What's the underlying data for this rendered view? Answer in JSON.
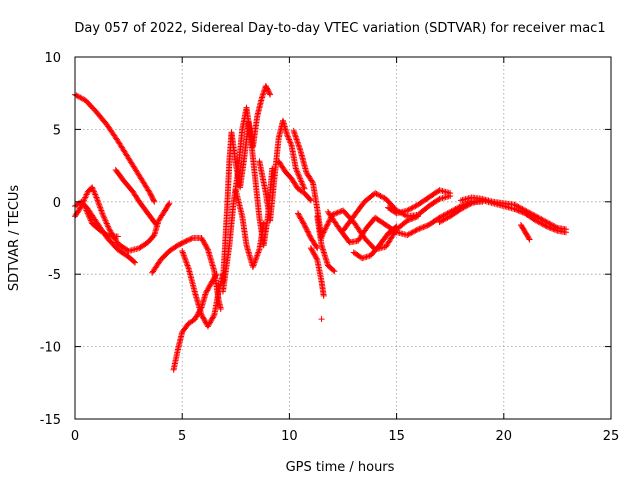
{
  "chart_data": {
    "type": "scatter",
    "title": "Day 057 of 2022, Sidereal Day-to-day VTEC variation (SDTVAR) for receiver mac1",
    "xlabel": "GPS time / hours",
    "ylabel": "SDTVAR / TECUs",
    "xlim": [
      0,
      25
    ],
    "ylim": [
      -15,
      10
    ],
    "xticks": [
      0,
      5,
      10,
      15,
      20,
      25
    ],
    "yticks": [
      -15,
      -10,
      -5,
      0,
      5,
      10
    ],
    "xtick_labels": [
      "0",
      "5",
      "10",
      "15",
      "20",
      "25"
    ],
    "ytick_labels": [
      "-15",
      "-10",
      "-5",
      "0",
      "5",
      "10"
    ],
    "grid": true,
    "marker": "+",
    "series": [
      {
        "name": "mac1",
        "color": "#ff0000",
        "tracks": [
          [
            [
              0.0,
              7.4
            ],
            [
              0.5,
              7.0
            ],
            [
              1.0,
              6.2
            ],
            [
              1.5,
              5.3
            ],
            [
              2.0,
              4.2
            ],
            [
              2.5,
              3.0
            ],
            [
              3.0,
              1.8
            ],
            [
              3.5,
              0.6
            ],
            [
              3.7,
              0.0
            ]
          ],
          [
            [
              1.9,
              2.2
            ],
            [
              2.3,
              1.4
            ],
            [
              2.7,
              0.7
            ],
            [
              3.0,
              0.0
            ],
            [
              3.4,
              -0.8
            ],
            [
              3.8,
              -1.6
            ]
          ],
          [
            [
              0.0,
              -1.0
            ],
            [
              0.3,
              -0.3
            ],
            [
              0.6,
              0.7
            ],
            [
              0.8,
              1.0
            ],
            [
              1.0,
              0.3
            ],
            [
              1.3,
              -0.9
            ],
            [
              1.6,
              -1.9
            ],
            [
              2.0,
              -2.9
            ],
            [
              2.5,
              -3.4
            ],
            [
              3.0,
              -3.2
            ],
            [
              3.4,
              -2.8
            ],
            [
              3.7,
              -2.3
            ],
            [
              3.9,
              -1.3
            ],
            [
              4.2,
              -0.6
            ],
            [
              4.4,
              -0.1
            ]
          ],
          [
            [
              0.0,
              -0.3
            ],
            [
              0.3,
              0.0
            ],
            [
              0.6,
              -0.5
            ],
            [
              1.0,
              -1.4
            ],
            [
              1.5,
              -2.5
            ],
            [
              2.0,
              -3.3
            ],
            [
              2.5,
              -3.8
            ],
            [
              2.8,
              -4.2
            ]
          ],
          [
            [
              0.5,
              -0.5
            ],
            [
              0.8,
              -1.5
            ],
            [
              1.2,
              -2.0
            ],
            [
              1.6,
              -2.4
            ],
            [
              2.0,
              -2.4
            ]
          ],
          [
            [
              3.6,
              -4.9
            ],
            [
              4.0,
              -4.0
            ],
            [
              4.4,
              -3.4
            ],
            [
              4.8,
              -3.0
            ],
            [
              5.2,
              -2.7
            ],
            [
              5.5,
              -2.5
            ],
            [
              5.9,
              -2.5
            ],
            [
              6.2,
              -3.3
            ],
            [
              6.5,
              -4.8
            ],
            [
              6.7,
              -6.8
            ],
            [
              6.8,
              -7.4
            ]
          ],
          [
            [
              4.6,
              -11.6
            ],
            [
              4.8,
              -10.2
            ],
            [
              5.0,
              -9.0
            ],
            [
              5.3,
              -8.4
            ],
            [
              5.6,
              -8.1
            ],
            [
              5.9,
              -7.3
            ],
            [
              6.1,
              -6.3
            ],
            [
              6.4,
              -5.5
            ],
            [
              6.6,
              -5.0
            ]
          ],
          [
            [
              5.0,
              -3.4
            ],
            [
              5.3,
              -4.6
            ],
            [
              5.6,
              -6.3
            ],
            [
              5.9,
              -7.8
            ],
            [
              6.2,
              -8.6
            ],
            [
              6.5,
              -7.8
            ],
            [
              6.7,
              -6.2
            ],
            [
              6.9,
              -5.0
            ]
          ],
          [
            [
              6.9,
              -5.5
            ],
            [
              7.0,
              -3.0
            ],
            [
              7.1,
              -0.3
            ],
            [
              7.2,
              2.8
            ],
            [
              7.3,
              4.8
            ],
            [
              7.5,
              2.6
            ],
            [
              7.7,
              1.0
            ],
            [
              7.9,
              3.1
            ],
            [
              8.1,
              5.5
            ],
            [
              8.3,
              3.8
            ],
            [
              8.5,
              5.9
            ],
            [
              8.7,
              7.1
            ],
            [
              8.9,
              8.0
            ],
            [
              9.1,
              7.4
            ]
          ],
          [
            [
              6.9,
              -6.2
            ],
            [
              7.2,
              -3.0
            ],
            [
              7.4,
              0.0
            ],
            [
              7.6,
              2.0
            ],
            [
              7.8,
              5.0
            ],
            [
              8.0,
              6.5
            ],
            [
              8.2,
              4.4
            ],
            [
              8.4,
              1.7
            ],
            [
              8.6,
              -1.1
            ],
            [
              8.8,
              -3.0
            ],
            [
              9.0,
              -1.0
            ],
            [
              9.2,
              2.3
            ]
          ],
          [
            [
              8.6,
              2.8
            ],
            [
              8.9,
              0.6
            ],
            [
              9.1,
              -1.3
            ],
            [
              9.3,
              1.6
            ],
            [
              9.5,
              4.4
            ],
            [
              9.7,
              5.6
            ],
            [
              9.9,
              4.6
            ],
            [
              10.1,
              3.9
            ],
            [
              10.3,
              2.3
            ],
            [
              10.5,
              1.6
            ],
            [
              10.7,
              0.9
            ]
          ],
          [
            [
              7.5,
              0.8
            ],
            [
              7.8,
              -1.0
            ],
            [
              8.0,
              -3.0
            ],
            [
              8.3,
              -4.5
            ],
            [
              8.6,
              -3.3
            ],
            [
              8.8,
              -1.5
            ]
          ],
          [
            [
              9.5,
              2.8
            ],
            [
              9.8,
              2.1
            ],
            [
              10.1,
              1.6
            ],
            [
              10.4,
              0.9
            ],
            [
              10.7,
              0.6
            ],
            [
              11.0,
              0.1
            ]
          ],
          [
            [
              10.2,
              4.9
            ],
            [
              10.5,
              3.6
            ],
            [
              10.8,
              2.0
            ],
            [
              11.1,
              1.3
            ],
            [
              11.3,
              -0.5
            ],
            [
              11.5,
              -2.5
            ]
          ],
          [
            [
              11.0,
              -3.2
            ],
            [
              11.3,
              -4.0
            ],
            [
              11.5,
              -5.5
            ],
            [
              11.6,
              -6.5
            ]
          ],
          [
            [
              11.3,
              -1.0
            ],
            [
              11.5,
              -3.0
            ],
            [
              11.8,
              -4.4
            ],
            [
              12.1,
              -4.8
            ]
          ],
          [
            [
              10.4,
              -0.8
            ],
            [
              10.7,
              -1.6
            ],
            [
              11.0,
              -2.5
            ],
            [
              11.3,
              -3.2
            ]
          ],
          [
            [
              11.5,
              -2.4
            ],
            [
              12.0,
              -0.9
            ],
            [
              12.5,
              -0.6
            ],
            [
              13.0,
              -1.4
            ],
            [
              13.5,
              -2.5
            ],
            [
              14.0,
              -3.3
            ],
            [
              14.5,
              -3.1
            ],
            [
              15.0,
              -1.9
            ],
            [
              15.5,
              -1.3
            ],
            [
              16.0,
              -1.0
            ]
          ],
          [
            [
              11.8,
              -0.7
            ],
            [
              12.3,
              -1.8
            ],
            [
              12.8,
              -2.8
            ],
            [
              13.2,
              -2.7
            ],
            [
              13.6,
              -1.8
            ],
            [
              14.0,
              -1.1
            ],
            [
              14.5,
              -1.6
            ],
            [
              15.0,
              -2.1
            ],
            [
              15.5,
              -2.3
            ],
            [
              16.0,
              -1.9
            ],
            [
              16.5,
              -1.6
            ],
            [
              17.0,
              -1.1
            ],
            [
              17.5,
              -0.7
            ],
            [
              18.0,
              -0.3
            ],
            [
              18.5,
              0.0
            ],
            [
              19.0,
              0.0
            ]
          ],
          [
            [
              12.5,
              -2.0
            ],
            [
              13.0,
              -1.0
            ],
            [
              13.5,
              0.0
            ],
            [
              14.0,
              0.6
            ],
            [
              14.5,
              0.2
            ],
            [
              15.0,
              -0.6
            ],
            [
              15.5,
              -1.0
            ],
            [
              16.0,
              -0.9
            ],
            [
              16.5,
              -0.3
            ],
            [
              17.0,
              0.2
            ],
            [
              17.5,
              0.4
            ]
          ],
          [
            [
              13.0,
              -3.5
            ],
            [
              13.4,
              -3.9
            ],
            [
              13.8,
              -3.7
            ],
            [
              14.2,
              -3.0
            ],
            [
              14.6,
              -2.2
            ],
            [
              15.0,
              -1.7
            ]
          ],
          [
            [
              14.6,
              -0.4
            ],
            [
              15.0,
              -0.8
            ],
            [
              15.5,
              -0.6
            ],
            [
              16.0,
              -0.2
            ],
            [
              16.5,
              0.3
            ],
            [
              17.0,
              0.8
            ],
            [
              17.5,
              0.6
            ]
          ],
          [
            [
              17.0,
              -1.4
            ],
            [
              17.5,
              -1.0
            ],
            [
              18.0,
              -0.5
            ],
            [
              18.5,
              -0.1
            ],
            [
              19.0,
              0.1
            ],
            [
              19.5,
              -0.1
            ],
            [
              20.0,
              -0.3
            ],
            [
              20.5,
              -0.5
            ],
            [
              21.0,
              -0.8
            ],
            [
              21.5,
              -1.3
            ],
            [
              22.0,
              -1.7
            ],
            [
              22.5,
              -2.0
            ],
            [
              22.9,
              -2.1
            ]
          ],
          [
            [
              18.0,
              0.1
            ],
            [
              18.5,
              0.3
            ],
            [
              19.0,
              0.2
            ],
            [
              19.5,
              0.0
            ],
            [
              20.0,
              -0.1
            ],
            [
              20.5,
              -0.2
            ],
            [
              21.0,
              -0.6
            ],
            [
              21.5,
              -1.0
            ],
            [
              22.0,
              -1.4
            ],
            [
              22.5,
              -1.8
            ],
            [
              22.9,
              -1.9
            ]
          ],
          [
            [
              20.8,
              -1.6
            ],
            [
              21.0,
              -2.1
            ],
            [
              21.2,
              -2.6
            ]
          ]
        ],
        "isolated": [
          [
            11.5,
            -8.1
          ]
        ]
      }
    ]
  }
}
